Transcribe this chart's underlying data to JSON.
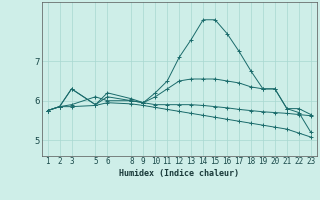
{
  "xlabel": "Humidex (Indice chaleur)",
  "ylabel": "",
  "background_color": "#ceeee8",
  "line_color": "#1a6b6b",
  "grid_color": "#a8d8d0",
  "x_ticks": [
    1,
    2,
    3,
    5,
    6,
    8,
    9,
    10,
    11,
    12,
    13,
    14,
    15,
    16,
    17,
    18,
    19,
    20,
    21,
    22,
    23
  ],
  "y_ticks": [
    5,
    6,
    7
  ],
  "ylim": [
    4.6,
    8.5
  ],
  "xlim": [
    0.5,
    23.5
  ],
  "series": [
    [
      5.75,
      5.85,
      6.3,
      5.9,
      6.2,
      6.05,
      5.95,
      6.2,
      6.5,
      7.1,
      7.55,
      8.05,
      8.05,
      7.7,
      7.25,
      6.75,
      6.3,
      6.3,
      5.8,
      5.8,
      5.65
    ],
    [
      5.75,
      5.85,
      6.3,
      5.9,
      6.1,
      6.0,
      5.95,
      6.1,
      6.3,
      6.5,
      6.55,
      6.55,
      6.55,
      6.5,
      6.45,
      6.35,
      6.3,
      6.3,
      5.8,
      5.7,
      5.2
    ],
    [
      5.75,
      5.85,
      5.85,
      5.88,
      5.95,
      5.92,
      5.88,
      5.83,
      5.78,
      5.73,
      5.68,
      5.63,
      5.58,
      5.53,
      5.48,
      5.43,
      5.38,
      5.33,
      5.28,
      5.18,
      5.08
    ],
    [
      5.75,
      5.85,
      5.9,
      6.1,
      6.0,
      6.0,
      5.95,
      5.9,
      5.9,
      5.9,
      5.9,
      5.88,
      5.85,
      5.82,
      5.78,
      5.75,
      5.72,
      5.7,
      5.68,
      5.65,
      5.62
    ]
  ],
  "x_vals": [
    1,
    2,
    3,
    5,
    6,
    8,
    9,
    10,
    11,
    12,
    13,
    14,
    15,
    16,
    17,
    18,
    19,
    20,
    21,
    22,
    23
  ],
  "xlabel_fontsize": 6.0,
  "ytick_fontsize": 6.5,
  "xtick_fontsize": 5.5
}
